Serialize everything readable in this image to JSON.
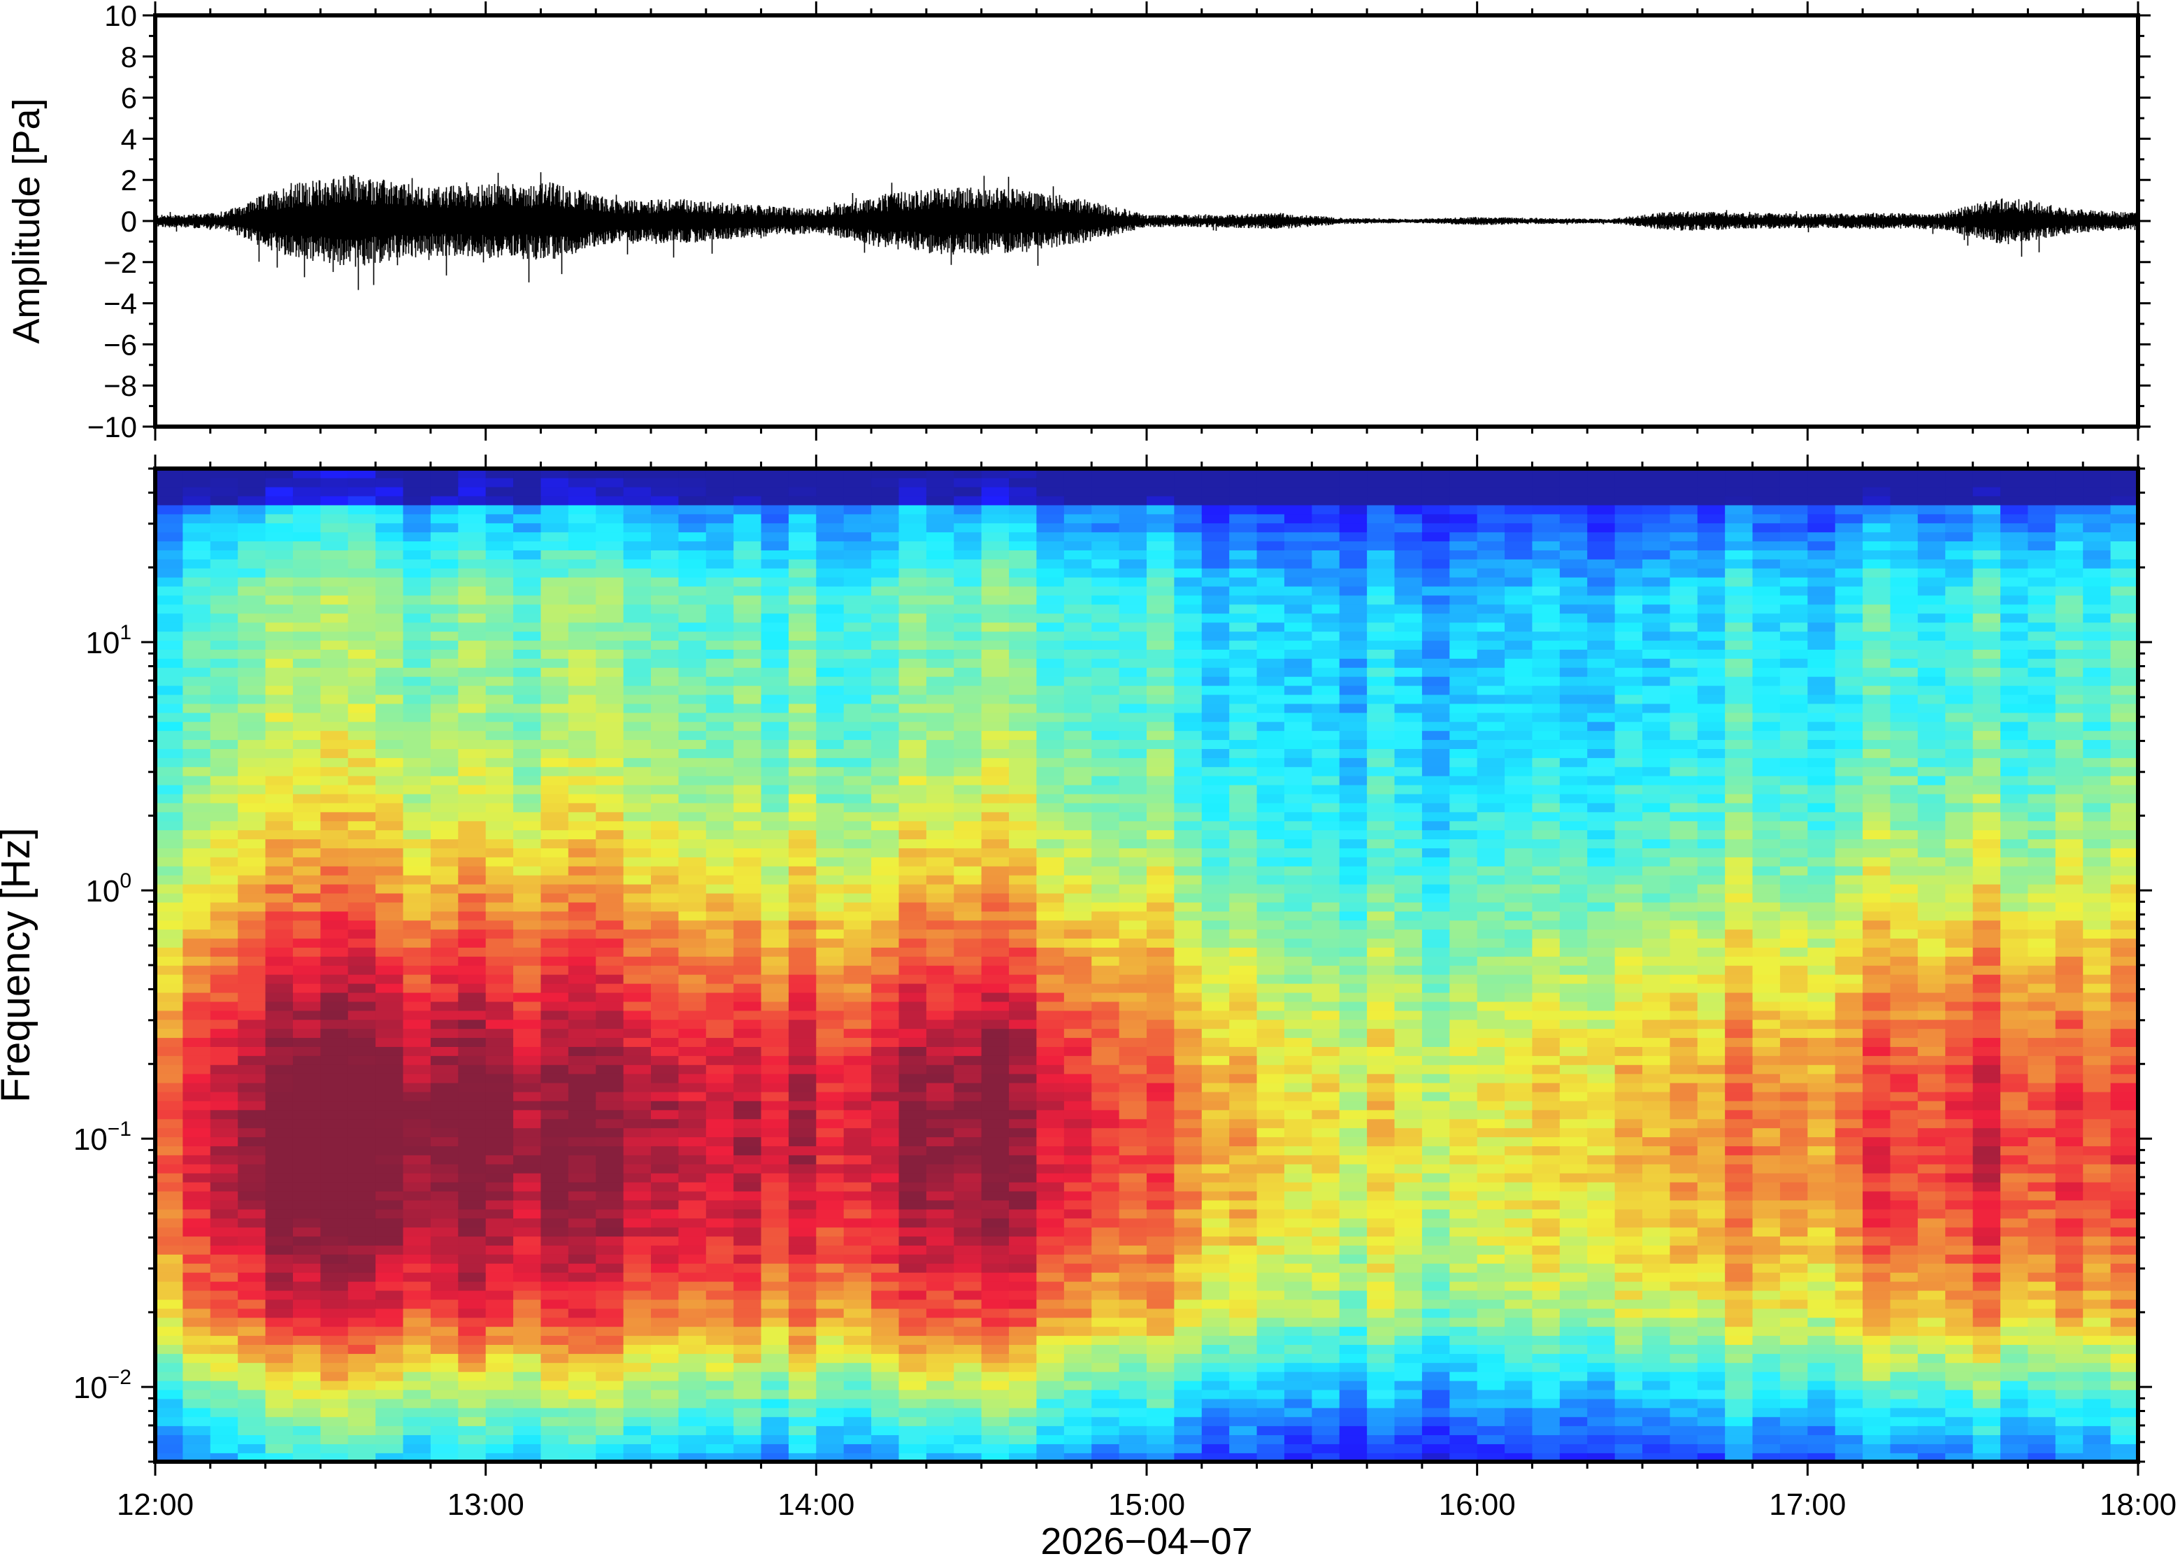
{
  "chart_data": [
    {
      "type": "line",
      "ylabel": "Amplitude [Pa]",
      "ylim": [
        -10,
        10
      ],
      "yticks": [
        "10",
        "8",
        "6",
        "4",
        "2",
        "0",
        "−2",
        "−4",
        "−6",
        "−8",
        "−10"
      ],
      "xlim": [
        "12:00",
        "18:00"
      ],
      "series": [
        {
          "x": [
            "12:00",
            "12:12",
            "12:24",
            "12:36",
            "12:48",
            "13:00",
            "13:12",
            "13:24",
            "13:36",
            "13:48",
            "14:00",
            "14:12",
            "14:24",
            "14:36",
            "14:48",
            "15:00",
            "15:12",
            "15:24",
            "15:36",
            "15:48",
            "16:00",
            "16:12",
            "16:24",
            "16:36",
            "16:48",
            "17:00",
            "17:12",
            "17:24",
            "17:36",
            "17:48",
            "18:00"
          ],
          "envelope": [
            0.3,
            0.4,
            1.8,
            2.3,
            1.7,
            1.8,
            1.9,
            1.0,
            1.1,
            0.8,
            0.6,
            1.3,
            1.7,
            1.6,
            1.1,
            0.3,
            0.3,
            0.4,
            0.15,
            0.1,
            0.2,
            0.15,
            0.1,
            0.5,
            0.4,
            0.35,
            0.4,
            0.4,
            1.2,
            0.6,
            0.4
          ]
        }
      ],
      "color": "#000000"
    },
    {
      "type": "heatmap",
      "ylabel": "Frequency [Hz]",
      "xlabel": "2026−04−07",
      "yscale": "log",
      "ylim": [
        0.005,
        50
      ],
      "yticks": [
        {
          "base": "10",
          "exp": "1"
        },
        {
          "base": "10",
          "exp": "0"
        },
        {
          "base": "10",
          "exp": "−1"
        },
        {
          "base": "10",
          "exp": "−2"
        }
      ],
      "xticks": [
        "12:00",
        "13:00",
        "14:00",
        "15:00",
        "16:00",
        "17:00",
        "18:00"
      ],
      "colormap": "jet",
      "activity_by_hour": {
        "x": [
          "12:00",
          "12:30",
          "13:00",
          "13:30",
          "14:00",
          "14:30",
          "15:00",
          "15:30",
          "16:00",
          "16:30",
          "17:00",
          "17:30",
          "18:00"
        ],
        "level": [
          0.6,
          1.0,
          0.95,
          0.8,
          0.75,
          0.95,
          0.55,
          0.2,
          0.15,
          0.4,
          0.45,
          0.7,
          0.5
        ]
      }
    }
  ]
}
